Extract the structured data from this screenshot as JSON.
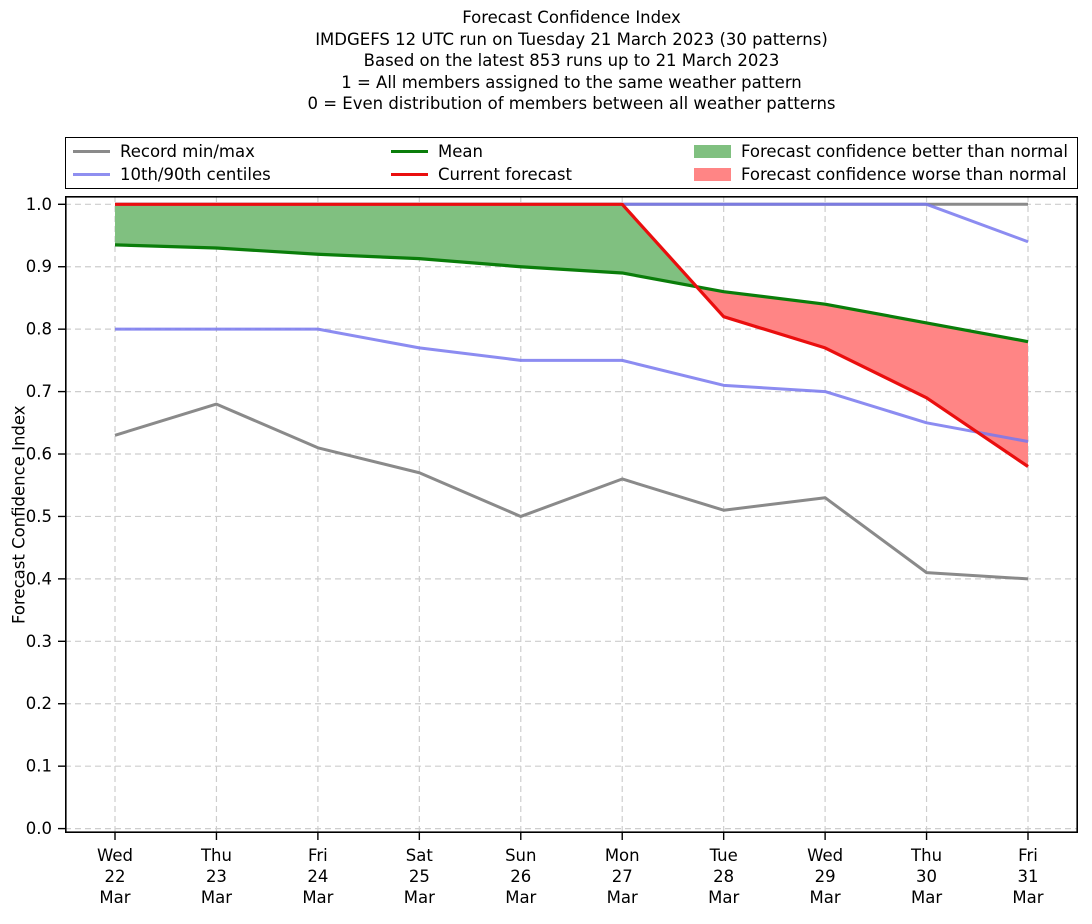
{
  "header": {
    "title_lines": [
      "Forecast Confidence Index",
      "IMDGEFS 12 UTC run on Tuesday 21 March 2023 (30 patterns)",
      "Based on the latest 853 runs up to 21 March 2023",
      "1 = All members assigned to the same weather pattern",
      "0 = Even distribution of members between all weather patterns"
    ]
  },
  "legend": {
    "items": [
      {
        "label": "Record min/max",
        "type": "line",
        "color": "#8a8a8a"
      },
      {
        "label": "10th/90th centiles",
        "type": "line",
        "color": "#8f8ff0"
      },
      {
        "label": "Mean",
        "type": "line",
        "color": "#0a7d0a"
      },
      {
        "label": "Current forecast",
        "type": "line",
        "color": "#ea0e0e"
      },
      {
        "label": "Forecast confidence better than normal",
        "type": "patch",
        "color": "#80c080"
      },
      {
        "label": "Forecast confidence worse than normal",
        "type": "patch",
        "color": "#ff8585"
      }
    ]
  },
  "chart_data": {
    "type": "line",
    "title": "Forecast Confidence Index",
    "xlabel": "",
    "ylabel": "Forecast Confidence Index",
    "ylim": [
      0.0,
      1.0
    ],
    "yticks": [
      0.0,
      0.1,
      0.2,
      0.3,
      0.4,
      0.5,
      0.6,
      0.7,
      0.8,
      0.9,
      1.0
    ],
    "grid": true,
    "legend_position": "top",
    "categories": [
      [
        "Wed",
        "22",
        "Mar"
      ],
      [
        "Thu",
        "23",
        "Mar"
      ],
      [
        "Fri",
        "24",
        "Mar"
      ],
      [
        "Sat",
        "25",
        "Mar"
      ],
      [
        "Sun",
        "26",
        "Mar"
      ],
      [
        "Mon",
        "27",
        "Mar"
      ],
      [
        "Tue",
        "28",
        "Mar"
      ],
      [
        "Wed",
        "29",
        "Mar"
      ],
      [
        "Thu",
        "30",
        "Mar"
      ],
      [
        "Fri",
        "31",
        "Mar"
      ]
    ],
    "series": [
      {
        "name": "record_max",
        "legend": "Record min/max",
        "color": "#8a8a8a",
        "opacity": 1,
        "lw": 3,
        "values": [
          1.0,
          1.0,
          1.0,
          1.0,
          1.0,
          1.0,
          1.0,
          1.0,
          1.0,
          1.0
        ]
      },
      {
        "name": "record_min",
        "legend": "Record min/max",
        "color": "#8a8a8a",
        "opacity": 1,
        "lw": 3,
        "values": [
          0.63,
          0.68,
          0.61,
          0.57,
          0.5,
          0.56,
          0.51,
          0.53,
          0.41,
          0.4
        ]
      },
      {
        "name": "centile_90",
        "legend": "10th/90th centiles",
        "color": "#7878ee",
        "opacity": 0.85,
        "lw": 3,
        "values": [
          1.0,
          1.0,
          1.0,
          1.0,
          1.0,
          1.0,
          1.0,
          1.0,
          1.0,
          0.94
        ]
      },
      {
        "name": "centile_10",
        "legend": "10th/90th centiles",
        "color": "#7878ee",
        "opacity": 0.85,
        "lw": 3,
        "values": [
          0.8,
          0.8,
          0.8,
          0.77,
          0.75,
          0.75,
          0.71,
          0.7,
          0.65,
          0.62
        ]
      },
      {
        "name": "mean",
        "legend": "Mean",
        "color": "#0a7d0a",
        "opacity": 1,
        "lw": 3.2,
        "values": [
          0.935,
          0.93,
          0.92,
          0.913,
          0.9,
          0.89,
          0.86,
          0.84,
          0.81,
          0.78
        ]
      },
      {
        "name": "current_forecast",
        "legend": "Current forecast",
        "color": "#ea0e0e",
        "opacity": 1,
        "lw": 3.2,
        "values": [
          1.0,
          1.0,
          1.0,
          1.0,
          1.0,
          1.0,
          0.82,
          0.77,
          0.69,
          0.58
        ]
      }
    ],
    "fills": {
      "between": [
        "current_forecast",
        "mean"
      ],
      "better_color": "#80c080",
      "worse_color": "#ff8585",
      "better_label": "Forecast confidence better than normal",
      "worse_label": "Forecast confidence worse than normal"
    }
  }
}
